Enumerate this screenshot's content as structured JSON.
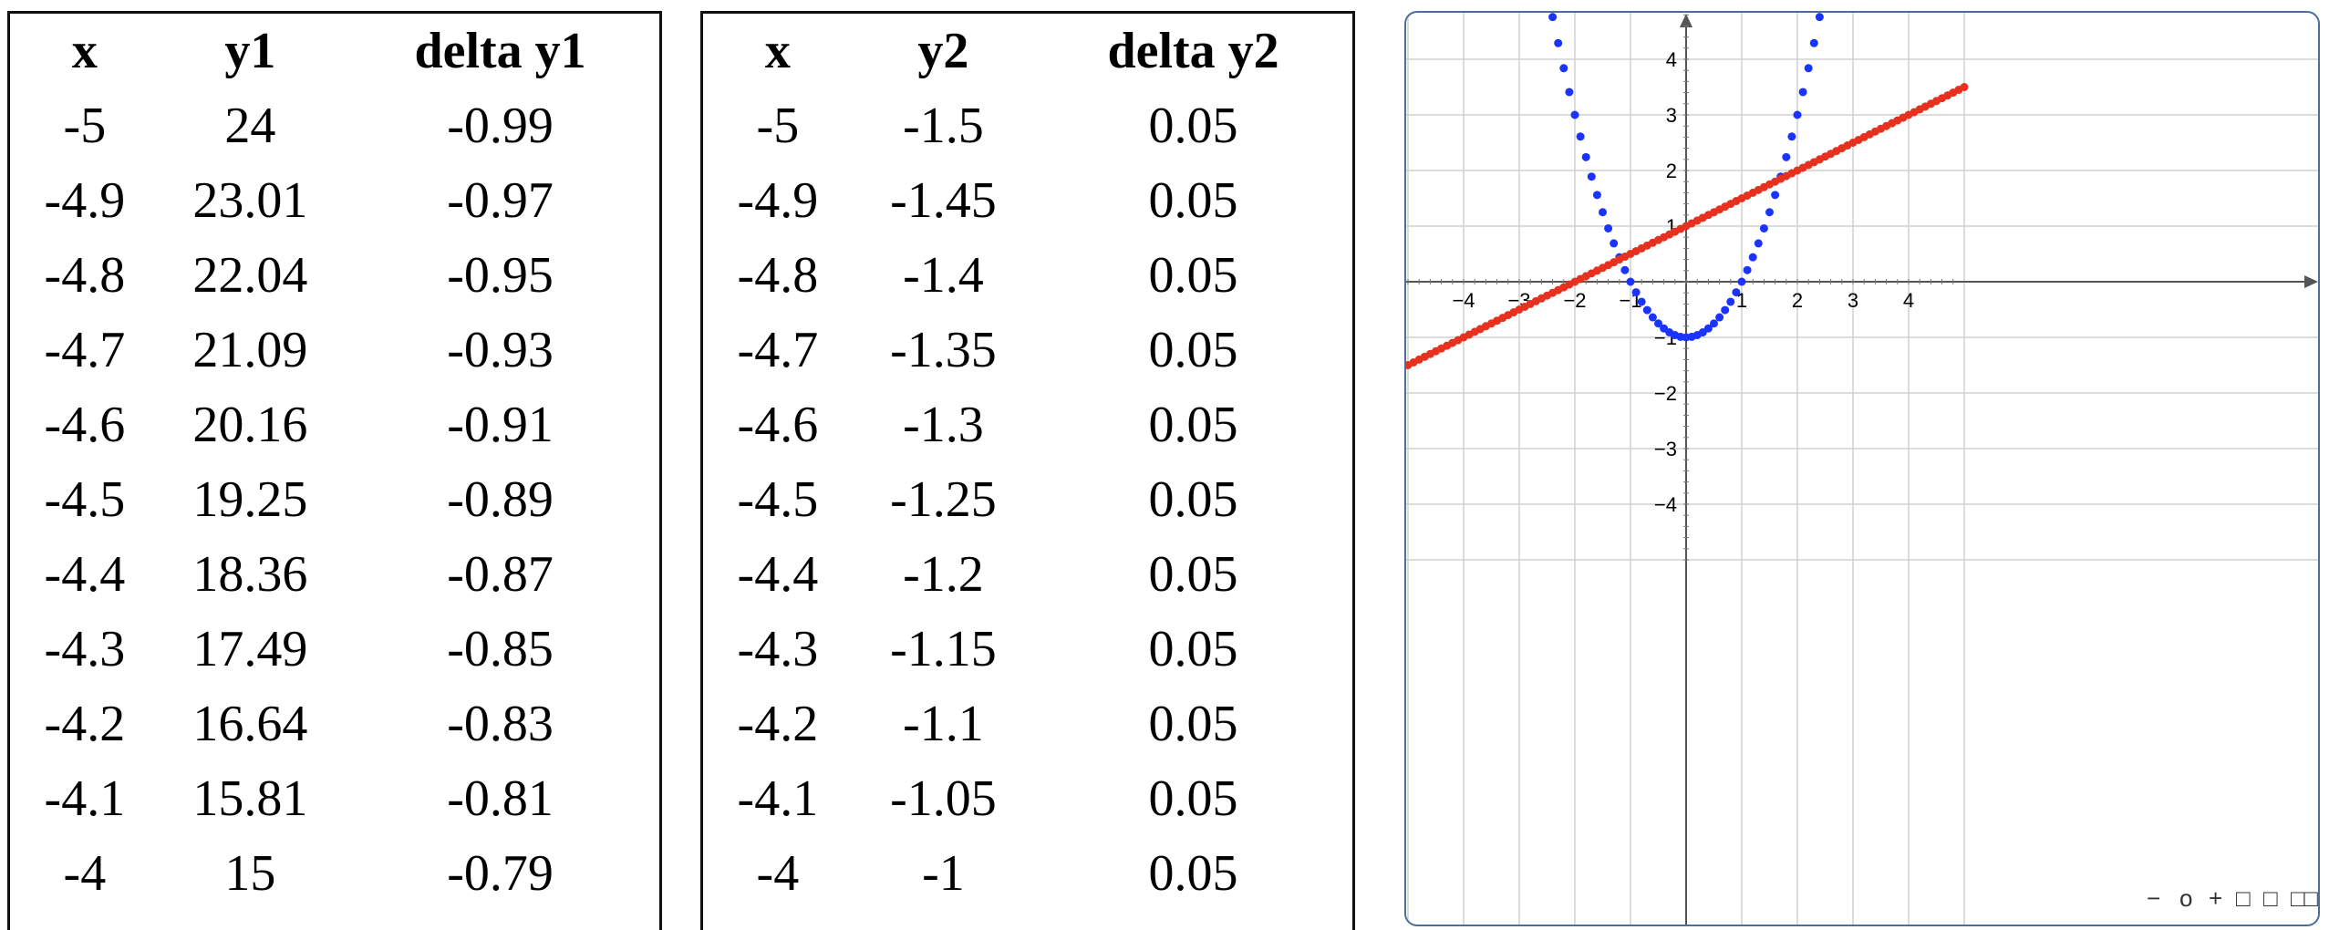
{
  "tables": [
    {
      "headers": [
        "x",
        "y1",
        "delta y1"
      ],
      "rows": [
        [
          "-5",
          "24",
          "-0.99"
        ],
        [
          "-4.9",
          "23.01",
          "-0.97"
        ],
        [
          "-4.8",
          "22.04",
          "-0.95"
        ],
        [
          "-4.7",
          "21.09",
          "-0.93"
        ],
        [
          "-4.6",
          "20.16",
          "-0.91"
        ],
        [
          "-4.5",
          "19.25",
          "-0.89"
        ],
        [
          "-4.4",
          "18.36",
          "-0.87"
        ],
        [
          "-4.3",
          "17.49",
          "-0.85"
        ],
        [
          "-4.2",
          "16.64",
          "-0.83"
        ],
        [
          "-4.1",
          "15.81",
          "-0.81"
        ],
        [
          "-4",
          "15",
          "-0.79"
        ]
      ]
    },
    {
      "headers": [
        "x",
        "y2",
        "delta y2"
      ],
      "rows": [
        [
          "-5",
          "-1.5",
          "0.05"
        ],
        [
          "-4.9",
          "-1.45",
          "0.05"
        ],
        [
          "-4.8",
          "-1.4",
          "0.05"
        ],
        [
          "-4.7",
          "-1.35",
          "0.05"
        ],
        [
          "-4.6",
          "-1.3",
          "0.05"
        ],
        [
          "-4.5",
          "-1.25",
          "0.05"
        ],
        [
          "-4.4",
          "-1.2",
          "0.05"
        ],
        [
          "-4.3",
          "-1.15",
          "0.05"
        ],
        [
          "-4.2",
          "-1.1",
          "0.05"
        ],
        [
          "-4.1",
          "-1.05",
          "0.05"
        ],
        [
          "-4",
          "-1",
          "0.05"
        ]
      ]
    }
  ],
  "chart_data": {
    "type": "scatter",
    "xlim": [
      -5,
      5
    ],
    "ylim": [
      -5,
      5
    ],
    "x_ticks": [
      "-4",
      "-3",
      "-2",
      "-1",
      "1",
      "2",
      "3",
      "4"
    ],
    "y_ticks": [
      "4",
      "3",
      "2",
      "1",
      "-1",
      "-2",
      "-3",
      "-4"
    ],
    "grid": true,
    "series": [
      {
        "color": "#1a33ff",
        "x": [
          -2.4,
          -2.3,
          -2.2,
          -2.1,
          -2.0,
          -1.9,
          -1.8,
          -1.7,
          -1.6,
          -1.5,
          -1.4,
          -1.3,
          -1.2,
          -1.1,
          -1.0,
          -0.9,
          -0.8,
          -0.7,
          -0.6,
          -0.5,
          -0.4,
          -0.3,
          -0.2,
          -0.1,
          0.0,
          0.1,
          0.2,
          0.3,
          0.4,
          0.5,
          0.6,
          0.7,
          0.8,
          0.9,
          1.0,
          1.1,
          1.2,
          1.3,
          1.4,
          1.5,
          1.6,
          1.7,
          1.8,
          1.9,
          2.0,
          2.1,
          2.2,
          2.3,
          2.4
        ],
        "y": [
          4.76,
          4.29,
          3.84,
          3.41,
          3.0,
          2.61,
          2.24,
          1.89,
          1.56,
          1.25,
          0.96,
          0.69,
          0.44,
          0.21,
          0.0,
          -0.19,
          -0.36,
          -0.51,
          -0.64,
          -0.75,
          -0.84,
          -0.91,
          -0.96,
          -0.99,
          -1.0,
          -0.99,
          -0.96,
          -0.91,
          -0.84,
          -0.75,
          -0.64,
          -0.51,
          -0.36,
          -0.19,
          0.0,
          0.21,
          0.44,
          0.69,
          0.96,
          1.25,
          1.56,
          1.89,
          2.24,
          2.61,
          3.0,
          3.41,
          3.84,
          4.29,
          4.76
        ]
      },
      {
        "color": "#e8301e",
        "x": [
          -5.0,
          -4.9,
          -4.8,
          -4.7,
          -4.6,
          -4.5,
          -4.4,
          -4.3,
          -4.2,
          -4.1,
          -4.0,
          -3.9,
          -3.8,
          -3.7,
          -3.6,
          -3.5,
          -3.4,
          -3.3,
          -3.2,
          -3.1,
          -3.0,
          -2.9,
          -2.8,
          -2.7,
          -2.6,
          -2.5,
          -2.4,
          -2.3,
          -2.2,
          -2.1,
          -2.0,
          -1.9,
          -1.8,
          -1.7,
          -1.6,
          -1.5,
          -1.4,
          -1.3,
          -1.2,
          -1.1,
          -1.0,
          -0.9,
          -0.8,
          -0.7,
          -0.6,
          -0.5,
          -0.4,
          -0.3,
          -0.2,
          -0.1,
          0.0,
          0.1,
          0.2,
          0.3,
          0.4,
          0.5,
          0.6,
          0.7,
          0.8,
          0.9,
          1.0,
          1.1,
          1.2,
          1.3,
          1.4,
          1.5,
          1.6,
          1.7,
          1.8,
          1.9,
          2.0,
          2.1,
          2.2,
          2.3,
          2.4,
          2.5,
          2.6,
          2.7,
          2.8,
          2.9,
          3.0,
          3.1,
          3.2,
          3.3,
          3.4,
          3.5,
          3.6,
          3.7,
          3.8,
          3.9,
          4.0,
          4.1,
          4.2,
          4.3,
          4.4,
          4.5,
          4.6,
          4.7,
          4.8,
          4.9,
          5.0
        ],
        "y": [
          -1.5,
          -1.45,
          -1.4,
          -1.35,
          -1.3,
          -1.25,
          -1.2,
          -1.15,
          -1.1,
          -1.05,
          -1.0,
          -0.95,
          -0.9,
          -0.85,
          -0.8,
          -0.75,
          -0.7,
          -0.65,
          -0.6,
          -0.55,
          -0.5,
          -0.45,
          -0.4,
          -0.35,
          -0.3,
          -0.25,
          -0.2,
          -0.15,
          -0.1,
          -0.05,
          0.0,
          0.05,
          0.1,
          0.15,
          0.2,
          0.25,
          0.3,
          0.35,
          0.4,
          0.45,
          0.5,
          0.55,
          0.6,
          0.65,
          0.7,
          0.75,
          0.8,
          0.85,
          0.9,
          0.95,
          1.0,
          1.05,
          1.1,
          1.15,
          1.2,
          1.25,
          1.3,
          1.35,
          1.4,
          1.45,
          1.5,
          1.55,
          1.6,
          1.65,
          1.7,
          1.75,
          1.8,
          1.85,
          1.9,
          1.95,
          2.0,
          2.05,
          2.1,
          2.15,
          2.2,
          2.25,
          2.3,
          2.35,
          2.4,
          2.45,
          2.5,
          2.55,
          2.6,
          2.65,
          2.7,
          2.75,
          2.8,
          2.85,
          2.9,
          2.95,
          3.0,
          3.05,
          3.1,
          3.15,
          3.2,
          3.25,
          3.3,
          3.35,
          3.4,
          3.45,
          3.5
        ]
      }
    ]
  },
  "controls": {
    "minus": "−",
    "reset": "o",
    "plus": "+",
    "box": "□"
  }
}
